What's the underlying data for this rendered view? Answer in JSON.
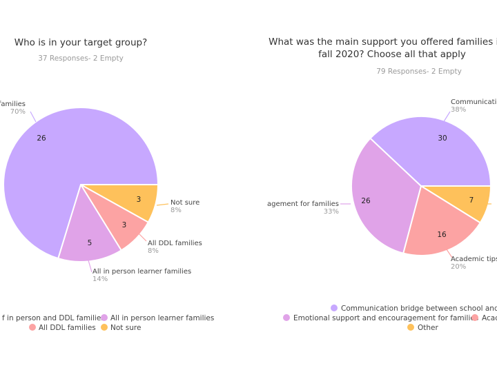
{
  "chart_data": [
    {
      "type": "pie",
      "title": "Who is in your target group?",
      "responses": "37 Responses- 2 Empty",
      "slices": [
        {
          "name": "All in person and DDL families",
          "label_visible": "families",
          "value": 26,
          "percent": "70%",
          "color": "#c7a8ff"
        },
        {
          "name": "All in person learner families",
          "label_visible": "All in person learner families",
          "value": 5,
          "percent": "14%",
          "color": "#e0a3e8"
        },
        {
          "name": "All DDL families",
          "label_visible": "All DDL families",
          "value": 3,
          "percent": "8%",
          "color": "#fca3a3"
        },
        {
          "name": "Not sure",
          "label_visible": "Not sure",
          "value": 3,
          "percent": "8%",
          "color": "#fec15b"
        }
      ],
      "legend": [
        {
          "text": "f in person and DDL families",
          "color": "#c7a8ff"
        },
        {
          "text": "All in person learner families",
          "color": "#e0a3e8"
        },
        {
          "text": "All DDL families",
          "color": "#fca3a3"
        },
        {
          "text": "Not sure",
          "color": "#fec15b"
        }
      ]
    },
    {
      "type": "pie",
      "title_lines": [
        "What was the main support you offered families in",
        "fall 2020? Choose all that apply"
      ],
      "responses": "79 Responses- 2 Empty",
      "slices": [
        {
          "name": "Communication bridge between school and home",
          "label_visible": "Communicatio",
          "value": 30,
          "percent": "38%",
          "color": "#c7a8ff"
        },
        {
          "name": "Emotional support and encouragement for families",
          "label_visible": "agement for families",
          "value": 26,
          "percent": "33%",
          "color": "#e0a3e8"
        },
        {
          "name": "Academic tips",
          "label_visible": "Academic tips",
          "value": 16,
          "percent": "20%",
          "color": "#fca3a3"
        },
        {
          "name": "Other",
          "label_visible": "",
          "value": 7,
          "percent": "",
          "color": "#fec15b"
        }
      ],
      "legend": [
        {
          "text": "Communication bridge between school and ho",
          "color": "#c7a8ff"
        },
        {
          "text": "Emotional support and encouragement for families",
          "color": "#e0a3e8"
        },
        {
          "text": "Acad",
          "color": "#fca3a3"
        },
        {
          "text": "Other",
          "color": "#fec15b"
        }
      ]
    }
  ]
}
